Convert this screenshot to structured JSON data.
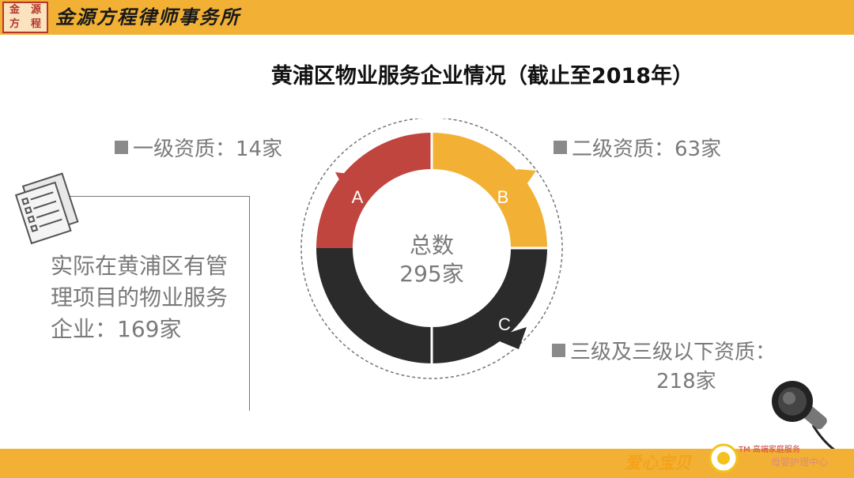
{
  "header": {
    "seal_chars": [
      "金",
      "源",
      "方",
      "程"
    ],
    "firm_name": "金源方程律师事务所"
  },
  "title": "黄浦区物业服务企业情况（截止至2018年）",
  "legend": {
    "a": "一级资质：14家",
    "b": "二级资质：63家",
    "c": "三级及三级以下资质：",
    "c_count": "218家"
  },
  "side_text": "实际在黄浦区有管理项目的物业服务企业：169家",
  "chart_data": {
    "type": "pie",
    "center_label": "总数",
    "center_value": "295家",
    "segments": [
      {
        "label": "A",
        "color": "#c0453e"
      },
      {
        "label": "B",
        "color": "#f2b134"
      },
      {
        "label": "C",
        "color": "#2b2b2b"
      }
    ]
  },
  "brand": {
    "name": "爱心宝贝",
    "tagline": "TM 高端家庭服务",
    "sub": "母婴护理中心"
  }
}
